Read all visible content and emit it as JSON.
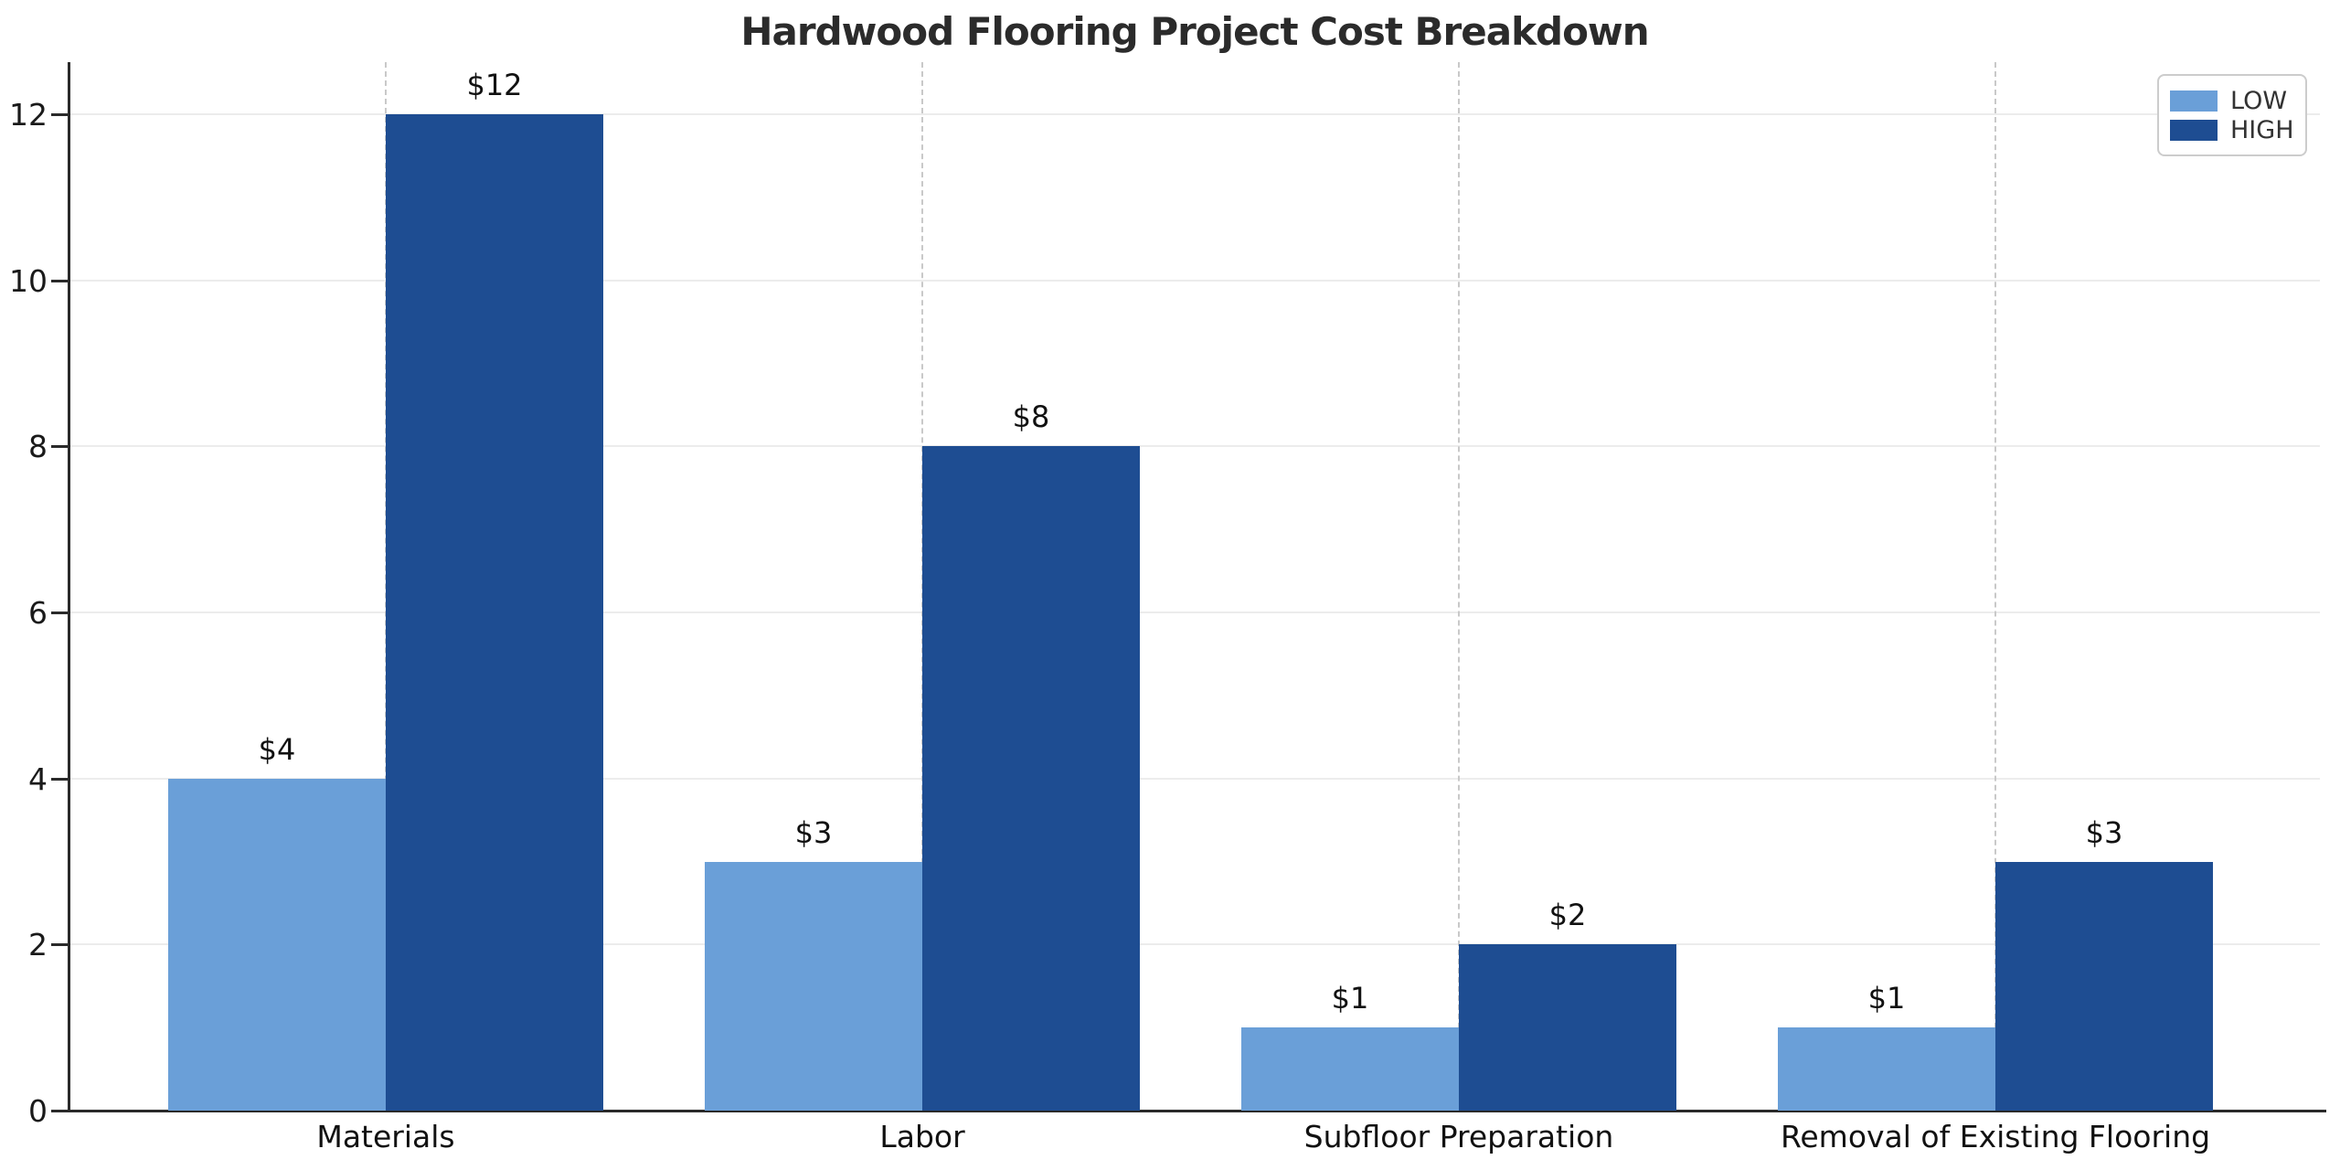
{
  "title": "Hardwood Flooring Project Cost Breakdown",
  "chart_data": {
    "type": "bar",
    "title": "Hardwood Flooring Project Cost Breakdown",
    "categories": [
      "Materials",
      "Labor",
      "Subfloor Preparation",
      "Removal of Existing Flooring"
    ],
    "series": [
      {
        "name": "LOW",
        "color": "#6A9FD8",
        "values": [
          4,
          3,
          1,
          1
        ],
        "data_labels": [
          "$4",
          "$3",
          "$1",
          "$1"
        ]
      },
      {
        "name": "HIGH",
        "color": "#1E4D92",
        "values": [
          12,
          8,
          2,
          3
        ],
        "data_labels": [
          "$12",
          "$8",
          "$2",
          "$3"
        ]
      }
    ],
    "xlabel": "",
    "ylabel": "",
    "ylim": [
      0,
      12.6
    ],
    "yticks": [
      0,
      2,
      4,
      6,
      8,
      10,
      12
    ],
    "grid": {
      "horizontal": "solid light gray",
      "vertical": "dashed at category centers"
    },
    "legend": {
      "position": "upper-right",
      "entries": [
        "LOW",
        "HIGH"
      ]
    }
  }
}
